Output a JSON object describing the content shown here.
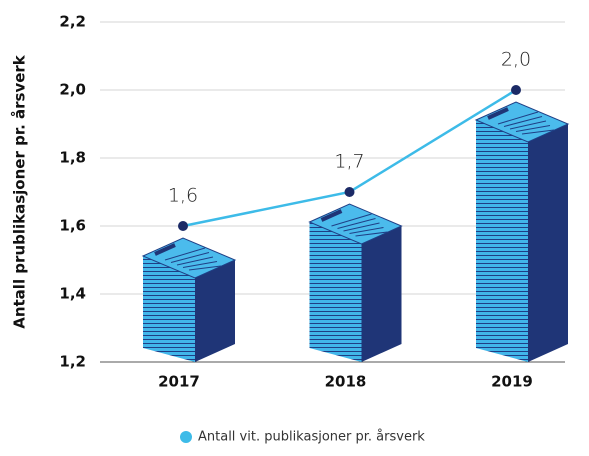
{
  "chart_data": {
    "type": "line",
    "y_label": "Antall  prublikasjoner pr. årsverk",
    "categories": [
      "2017",
      "2018",
      "2019"
    ],
    "series": [
      {
        "name": "Antall vit.  publikasjoner pr. årsverk",
        "color": "#3dbbe8",
        "values": [
          1.6,
          1.7,
          2.0
        ],
        "value_labels": [
          "1,6",
          "1,7",
          "2,0"
        ]
      }
    ],
    "ylim": [
      1.2,
      2.2
    ],
    "yticks": [
      {
        "value": 1.2,
        "label": "1,2"
      },
      {
        "value": 1.4,
        "label": "1,4"
      },
      {
        "value": 1.6,
        "label": "1,6"
      },
      {
        "value": 1.8,
        "label": "1,8"
      },
      {
        "value": 2.0,
        "label": "2,0"
      },
      {
        "value": 2.2,
        "label": "2,2"
      }
    ],
    "grid": true
  }
}
